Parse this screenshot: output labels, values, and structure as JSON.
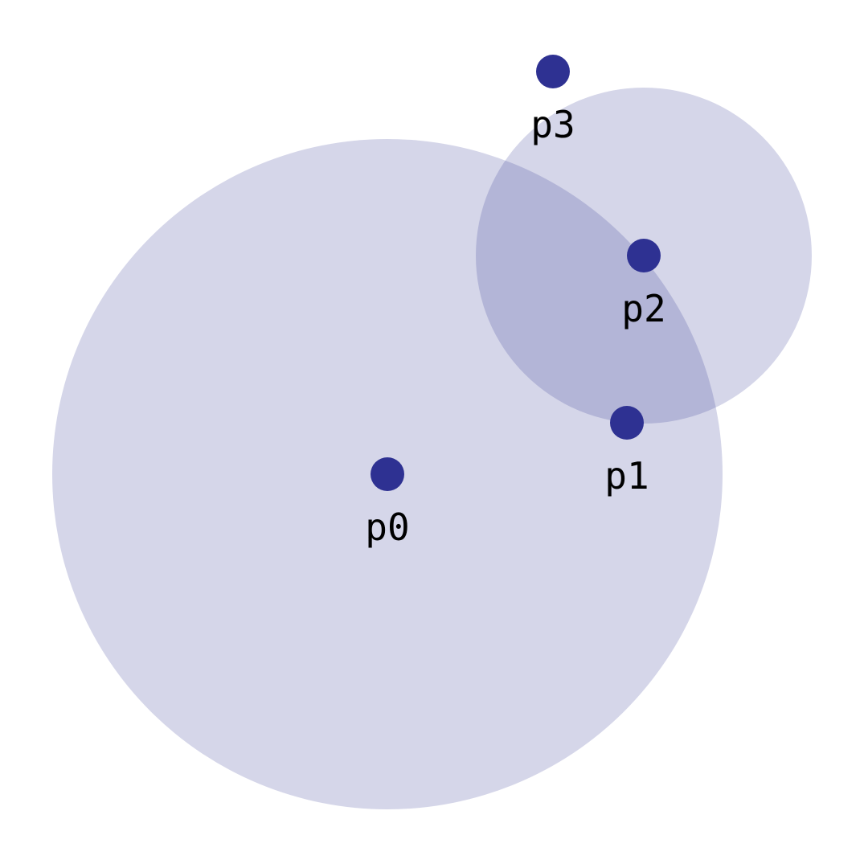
{
  "colors": {
    "disc_fill": "#2e3192",
    "point_fill": "#2e3192"
  },
  "points": [
    {
      "label": "p0"
    },
    {
      "label": "p1"
    },
    {
      "label": "p2"
    },
    {
      "label": "p3"
    }
  ]
}
